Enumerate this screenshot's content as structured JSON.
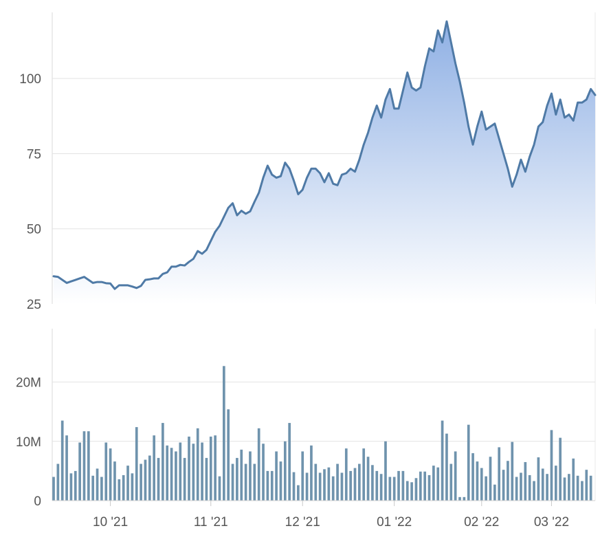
{
  "chart_data": [
    {
      "type": "area",
      "ylim": [
        25,
        122
      ],
      "y_ticks": [
        25,
        50,
        75,
        100
      ],
      "y_tick_labels": [
        "25",
        "50",
        "75",
        "100"
      ],
      "grid": true,
      "line_color": "#4f7aa6",
      "fill_top_color": "#8fb0e4",
      "fill_bottom_color": "#ffffff",
      "x_labels": [
        "10 '21",
        "11 '21",
        "12 '21",
        "01 '22",
        "02 '22",
        "03 '22"
      ],
      "x_label_positions": [
        13,
        36,
        57,
        78,
        98,
        114
      ],
      "values": [
        34.2,
        34,
        33,
        32,
        32.5,
        33,
        33.5,
        34,
        33,
        32,
        32.3,
        32.3,
        31.9,
        31.8,
        30,
        31.2,
        31.2,
        31.2,
        30.8,
        30.3,
        31,
        33,
        33.2,
        33.5,
        33.5,
        35,
        35.5,
        37.4,
        37.4,
        38,
        37.8,
        39,
        40,
        42.6,
        41.7,
        43,
        46,
        49,
        51,
        54,
        57,
        58.5,
        54.5,
        56,
        55,
        55.8,
        59,
        62,
        67,
        71,
        68,
        67,
        67.5,
        72,
        70,
        66,
        61.5,
        63,
        67,
        70,
        70,
        68.5,
        65.5,
        68.5,
        65,
        64.5,
        68,
        68.5,
        70,
        69,
        73,
        78,
        82,
        87,
        91,
        87,
        93,
        96.5,
        90,
        90,
        96,
        102,
        97,
        96,
        97,
        104,
        110,
        109,
        116,
        112,
        119,
        112,
        105,
        99,
        92,
        84,
        78,
        84,
        89,
        83,
        84,
        85,
        80,
        75,
        70,
        64,
        68,
        73,
        69,
        74,
        78,
        84,
        85.5,
        91,
        95,
        88,
        93,
        87,
        88,
        86,
        92,
        92,
        93,
        96.5,
        94.5
      ],
      "series": [
        {
          "name": "",
          "values_ref": "values"
        }
      ]
    },
    {
      "type": "bar",
      "ylim": [
        0,
        29
      ],
      "y_ticks": [
        0,
        10,
        20
      ],
      "y_tick_labels": [
        "0",
        "10M",
        "20M"
      ],
      "grid": true,
      "bar_color": "#6f93ad",
      "x_labels": [
        "10 '21",
        "11 '21",
        "12 '21",
        "01 '22",
        "02 '22",
        "03 '22"
      ],
      "x_label_positions": [
        13,
        36,
        57,
        78,
        98,
        114
      ],
      "values": [
        4,
        6.2,
        13.5,
        11,
        4.6,
        5,
        9.8,
        11.7,
        11.7,
        4.2,
        5.4,
        4,
        9.8,
        8.8,
        6.6,
        3.6,
        4.3,
        5.9,
        4.6,
        12.4,
        6.2,
        6.9,
        7.6,
        11,
        7.2,
        13.1,
        9.3,
        8.9,
        8.3,
        9.8,
        7.2,
        10.8,
        9.6,
        12.2,
        9.8,
        7.2,
        10.8,
        11,
        4.1,
        22.7,
        15.4,
        6.2,
        7.2,
        8.6,
        6.2,
        8.3,
        6.2,
        12.2,
        9.6,
        5,
        5,
        8.3,
        6.6,
        10,
        13.1,
        4.8,
        2.6,
        8.3,
        4.7,
        9.3,
        6.2,
        4.7,
        5.3,
        5.6,
        4.1,
        6.2,
        4.7,
        8.8,
        5,
        5.5,
        6.2,
        8.8,
        7.4,
        6,
        5,
        4.5,
        10,
        4,
        4,
        5,
        5,
        3.3,
        3.1,
        3.8,
        4.9,
        4.9,
        4.3,
        5.9,
        5.6,
        13.5,
        11.3,
        6.2,
        8.3,
        0.6,
        0.6,
        12.8,
        8,
        6.6,
        5.5,
        4.1,
        7.4,
        2.7,
        9,
        5.2,
        6.7,
        9.9,
        4,
        4.7,
        6.5,
        4.3,
        3.3,
        7.3,
        5.4,
        4.5,
        11.9,
        5.9,
        10.6,
        3.9,
        4.5,
        7.1,
        4.2,
        3.3,
        5.2,
        4.2
      ],
      "series": [
        {
          "name": "",
          "values_ref": "values"
        }
      ]
    }
  ]
}
